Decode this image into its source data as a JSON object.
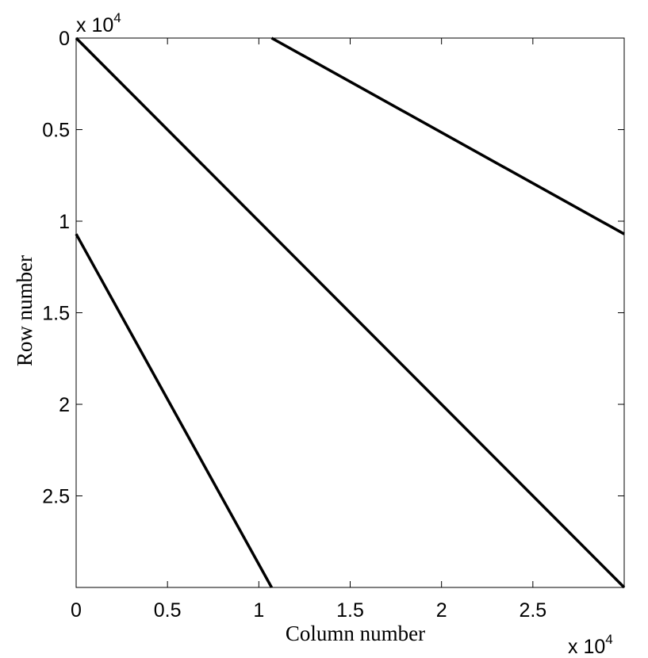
{
  "chart_data": {
    "type": "line",
    "xlabel": "Column number",
    "ylabel": "Row number",
    "x_multiplier": {
      "base": "x 10",
      "exponent": "4"
    },
    "y_multiplier": {
      "base": "x 10",
      "exponent": "4"
    },
    "xlim": [
      0,
      3
    ],
    "ylim": [
      0,
      3
    ],
    "y_inverted": true,
    "xticks": [
      0,
      0.5,
      1,
      1.5,
      2,
      2.5
    ],
    "yticks": [
      0,
      0.5,
      1,
      1.5,
      2,
      2.5
    ],
    "grid": false,
    "series": [
      {
        "color": "#000000",
        "x": [
          0,
          3
        ],
        "values": [
          0,
          3
        ]
      },
      {
        "color": "#000000",
        "x": [
          1.07,
          3
        ],
        "values": [
          0,
          1.07
        ]
      },
      {
        "color": "#000000",
        "x": [
          0,
          1.07
        ],
        "values": [
          1.07,
          3
        ]
      }
    ]
  }
}
